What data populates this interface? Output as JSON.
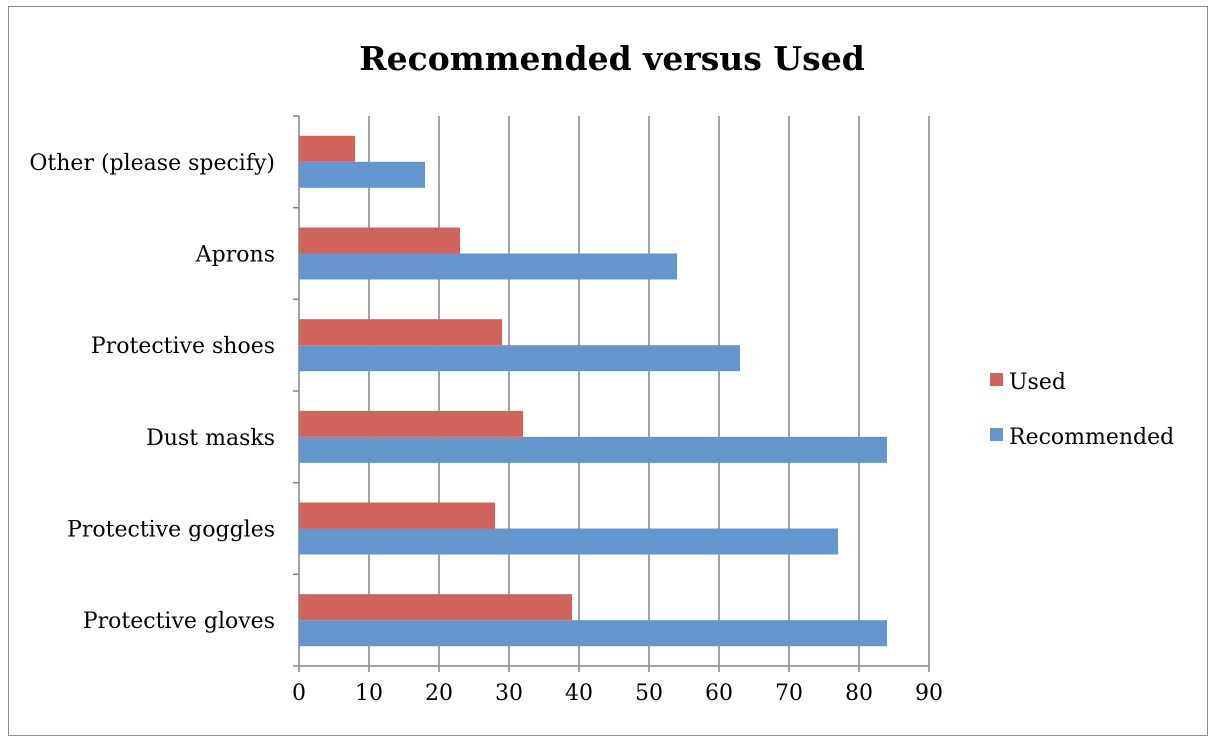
{
  "chart_data": {
    "type": "bar",
    "orientation": "horizontal",
    "title": "Recommended versus Used",
    "categories": [
      "Protective gloves",
      "Protective goggles",
      "Dust masks",
      "Protective shoes",
      "Aprons",
      "Other (please specify)"
    ],
    "series": [
      {
        "name": "Recommended",
        "color": "#6496cd",
        "values": [
          84,
          77,
          84,
          63,
          54,
          18
        ]
      },
      {
        "name": "Used",
        "color": "#d0645d",
        "values": [
          39,
          28,
          32,
          29,
          23,
          8
        ]
      }
    ],
    "xlim": [
      0,
      90
    ],
    "xticks": [
      "0",
      "10",
      "20",
      "30",
      "40",
      "50",
      "60",
      "70",
      "80",
      "90"
    ],
    "xlabel": "",
    "ylabel": "",
    "grid": "vertical",
    "legend": {
      "placement": "right",
      "entries": [
        "Used",
        "Recommended"
      ]
    }
  }
}
